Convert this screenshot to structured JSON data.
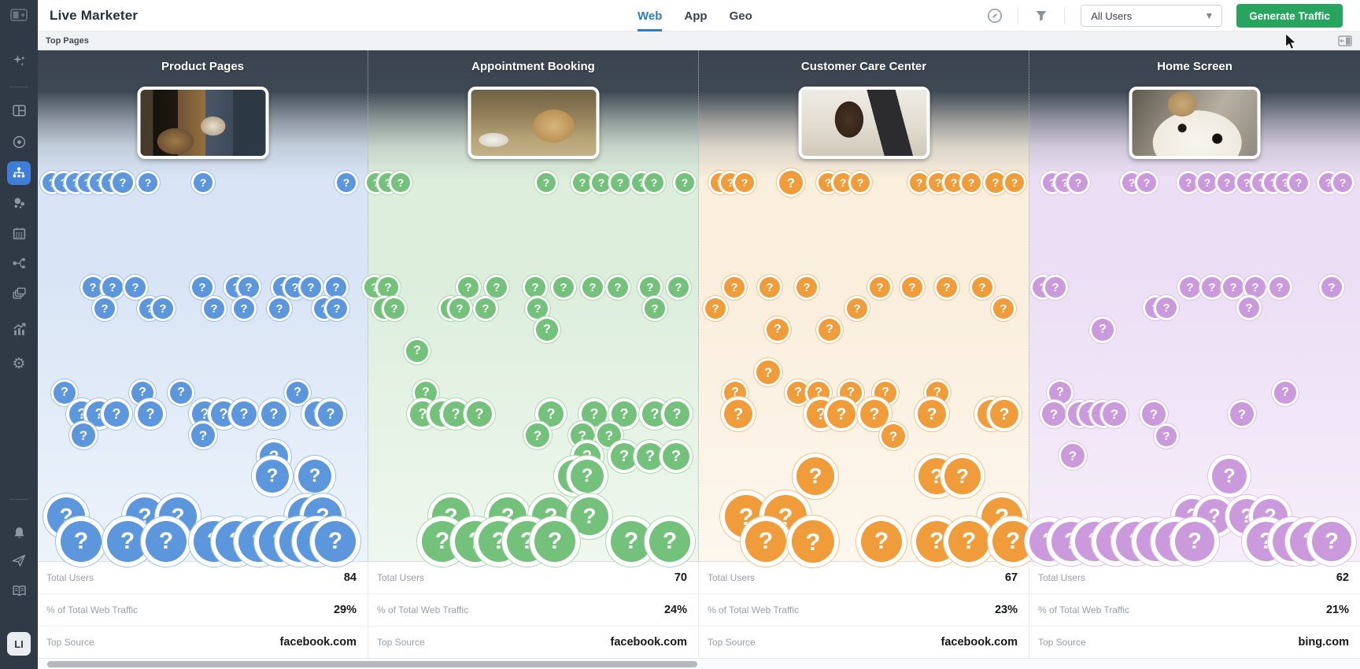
{
  "header": {
    "title": "Live Marketer",
    "tabs": [
      {
        "label": "Web",
        "active": true
      },
      {
        "label": "App",
        "active": false
      },
      {
        "label": "Geo",
        "active": false
      }
    ],
    "user_filter": {
      "value": "All Users"
    },
    "generate_button": "Generate Traffic",
    "icons": [
      "compass-icon",
      "filter-icon"
    ]
  },
  "toolbar": {
    "section_label": "Top Pages"
  },
  "sidebar": {
    "avatar_label": "LI",
    "items": [
      "panel-logo",
      "sparkles",
      "dashboard",
      "target",
      "sitemap-active",
      "bubbles",
      "calendar",
      "flow",
      "layers",
      "chart",
      "settings",
      "notifications",
      "send",
      "guide"
    ]
  },
  "stats_labels": {
    "total_users": "Total Users",
    "pct_traffic": "% of Total Web Traffic",
    "top_source": "Top Source"
  },
  "bubble_glyph": "?",
  "colors": {
    "accent_green": "#27a45d",
    "accent_blue": "#2d7dc4",
    "sidebar_bg": "#2f3a46",
    "column_header_dark": "#3a434e"
  },
  "columns": [
    {
      "title": "Product Pages",
      "total_users": "84",
      "pct_traffic": "29%",
      "top_source": "facebook.com",
      "bubble": "#5c96dd",
      "ring": "#9dc0ec",
      "tint": "#d9e5f6",
      "tint_light": "#edf3fa",
      "bubbles": [
        [
          18,
          232,
          12
        ],
        [
          33,
          232,
          12
        ],
        [
          48,
          232,
          12
        ],
        [
          63,
          232,
          12
        ],
        [
          78,
          232,
          12
        ],
        [
          93,
          232,
          12
        ],
        [
          108,
          232,
          13
        ],
        [
          140,
          232,
          12
        ],
        [
          210,
          232,
          12
        ],
        [
          392,
          232,
          12
        ],
        [
          70,
          365,
          13
        ],
        [
          95,
          365,
          13
        ],
        [
          124,
          365,
          13
        ],
        [
          209,
          365,
          13
        ],
        [
          252,
          365,
          13
        ],
        [
          268,
          365,
          13
        ],
        [
          312,
          365,
          13
        ],
        [
          327,
          365,
          13
        ],
        [
          347,
          365,
          13
        ],
        [
          379,
          365,
          13
        ],
        [
          85,
          392,
          13
        ],
        [
          142,
          392,
          13
        ],
        [
          159,
          392,
          13
        ],
        [
          224,
          392,
          13
        ],
        [
          262,
          392,
          13
        ],
        [
          307,
          392,
          13
        ],
        [
          364,
          392,
          13
        ],
        [
          380,
          392,
          13
        ],
        [
          34,
          499,
          14
        ],
        [
          133,
          499,
          14
        ],
        [
          182,
          499,
          14
        ],
        [
          330,
          499,
          14
        ],
        [
          56,
          526,
          16
        ],
        [
          78,
          526,
          16
        ],
        [
          100,
          526,
          16
        ],
        [
          143,
          526,
          16
        ],
        [
          212,
          526,
          16
        ],
        [
          236,
          526,
          16
        ],
        [
          262,
          526,
          16
        ],
        [
          300,
          526,
          16
        ],
        [
          355,
          526,
          16
        ],
        [
          372,
          526,
          16
        ],
        [
          58,
          553,
          15
        ],
        [
          210,
          553,
          15
        ],
        [
          300,
          580,
          18
        ],
        [
          298,
          605,
          21
        ],
        [
          352,
          605,
          21
        ],
        [
          36,
          656,
          24
        ],
        [
          136,
          656,
          24
        ],
        [
          178,
          656,
          24
        ],
        [
          342,
          656,
          24
        ],
        [
          362,
          656,
          24
        ],
        [
          55,
          688,
          26
        ],
        [
          114,
          688,
          26
        ],
        [
          163,
          688,
          26
        ],
        [
          224,
          688,
          26
        ],
        [
          252,
          688,
          26
        ],
        [
          281,
          688,
          26
        ],
        [
          307,
          688,
          26
        ],
        [
          333,
          688,
          26
        ],
        [
          355,
          688,
          26
        ],
        [
          378,
          688,
          26
        ]
      ]
    },
    {
      "title": "Appointment Booking",
      "total_users": "70",
      "pct_traffic": "24%",
      "top_source": "facebook.com",
      "bubble": "#74c17b",
      "ring": "#a8d8aa",
      "tint": "#ddeedd",
      "tint_light": "#eff7ee",
      "bubbles": [
        [
          10,
          232,
          12
        ],
        [
          25,
          232,
          12
        ],
        [
          41,
          232,
          12
        ],
        [
          226,
          232,
          12
        ],
        [
          272,
          232,
          12
        ],
        [
          296,
          232,
          12
        ],
        [
          320,
          232,
          12
        ],
        [
          347,
          232,
          12
        ],
        [
          363,
          232,
          12
        ],
        [
          402,
          232,
          12
        ],
        [
          8,
          365,
          13
        ],
        [
          25,
          365,
          13
        ],
        [
          127,
          365,
          13
        ],
        [
          163,
          365,
          13
        ],
        [
          212,
          365,
          13
        ],
        [
          248,
          365,
          13
        ],
        [
          285,
          365,
          13
        ],
        [
          317,
          365,
          13
        ],
        [
          358,
          365,
          13
        ],
        [
          394,
          365,
          13
        ],
        [
          20,
          392,
          13
        ],
        [
          33,
          392,
          13
        ],
        [
          105,
          392,
          13
        ],
        [
          116,
          392,
          13
        ],
        [
          149,
          392,
          13
        ],
        [
          215,
          392,
          13
        ],
        [
          364,
          392,
          13
        ],
        [
          227,
          419,
          14
        ],
        [
          62,
          446,
          14
        ],
        [
          73,
          499,
          14
        ],
        [
          69,
          526,
          16
        ],
        [
          94,
          526,
          16
        ],
        [
          111,
          526,
          16
        ],
        [
          141,
          526,
          16
        ],
        [
          232,
          526,
          16
        ],
        [
          287,
          526,
          16
        ],
        [
          325,
          526,
          16
        ],
        [
          364,
          526,
          16
        ],
        [
          392,
          526,
          16
        ],
        [
          215,
          553,
          15
        ],
        [
          272,
          553,
          15
        ],
        [
          306,
          553,
          15
        ],
        [
          278,
          580,
          17
        ],
        [
          325,
          580,
          17
        ],
        [
          358,
          580,
          17
        ],
        [
          391,
          580,
          17
        ],
        [
          262,
          605,
          21
        ],
        [
          278,
          605,
          21
        ],
        [
          105,
          656,
          24
        ],
        [
          177,
          656,
          24
        ],
        [
          232,
          656,
          24
        ],
        [
          281,
          656,
          24
        ],
        [
          94,
          688,
          26
        ],
        [
          136,
          688,
          26
        ],
        [
          166,
          688,
          26
        ],
        [
          202,
          688,
          26
        ],
        [
          237,
          688,
          26
        ],
        [
          334,
          688,
          26
        ],
        [
          383,
          688,
          26
        ]
      ]
    },
    {
      "title": "Customer Care Center",
      "total_users": "67",
      "pct_traffic": "23%",
      "top_source": "facebook.com",
      "bubble": "#f09c3a",
      "ring": "#f3c188",
      "tint": "#faeedd",
      "tint_light": "#fdf7ed",
      "bubbles": [
        [
          27,
          232,
          12
        ],
        [
          40,
          232,
          12
        ],
        [
          58,
          232,
          12
        ],
        [
          117,
          232,
          15
        ],
        [
          164,
          232,
          12
        ],
        [
          183,
          232,
          12
        ],
        [
          205,
          232,
          12
        ],
        [
          280,
          232,
          12
        ],
        [
          304,
          232,
          12
        ],
        [
          324,
          232,
          12
        ],
        [
          346,
          232,
          12
        ],
        [
          377,
          232,
          13
        ],
        [
          401,
          232,
          12
        ],
        [
          45,
          365,
          13
        ],
        [
          90,
          365,
          13
        ],
        [
          137,
          365,
          13
        ],
        [
          230,
          365,
          13
        ],
        [
          271,
          365,
          13
        ],
        [
          315,
          365,
          13
        ],
        [
          360,
          365,
          13
        ],
        [
          21,
          392,
          13
        ],
        [
          201,
          392,
          13
        ],
        [
          387,
          392,
          13
        ],
        [
          100,
          419,
          14
        ],
        [
          166,
          419,
          14
        ],
        [
          88,
          473,
          15
        ],
        [
          46,
          499,
          14
        ],
        [
          126,
          499,
          14
        ],
        [
          152,
          499,
          14
        ],
        [
          193,
          499,
          14
        ],
        [
          237,
          499,
          14
        ],
        [
          303,
          499,
          14
        ],
        [
          50,
          526,
          18
        ],
        [
          155,
          526,
          18
        ],
        [
          181,
          526,
          18
        ],
        [
          223,
          526,
          18
        ],
        [
          296,
          526,
          18
        ],
        [
          372,
          526,
          18
        ],
        [
          388,
          526,
          18
        ],
        [
          247,
          554,
          15
        ],
        [
          148,
          605,
          24
        ],
        [
          302,
          605,
          23
        ],
        [
          335,
          605,
          23
        ],
        [
          60,
          656,
          27
        ],
        [
          110,
          656,
          27
        ],
        [
          385,
          658,
          26
        ],
        [
          85,
          688,
          26
        ],
        [
          145,
          688,
          27
        ],
        [
          232,
          688,
          26
        ],
        [
          302,
          688,
          26
        ],
        [
          343,
          688,
          26
        ],
        [
          399,
          688,
          26
        ]
      ]
    },
    {
      "title": "Home Screen",
      "total_users": "62",
      "pct_traffic": "21%",
      "top_source": "bing.com",
      "bubble": "#cb9add",
      "ring": "#ddc0ec",
      "tint": "#ecdff5",
      "tint_light": "#f6eefa",
      "bubbles": [
        [
          29,
          232,
          12
        ],
        [
          45,
          232,
          12
        ],
        [
          62,
          232,
          12
        ],
        [
          130,
          232,
          12
        ],
        [
          149,
          232,
          12
        ],
        [
          202,
          232,
          12
        ],
        [
          226,
          232,
          12
        ],
        [
          251,
          232,
          12
        ],
        [
          276,
          232,
          12
        ],
        [
          295,
          232,
          12
        ],
        [
          310,
          232,
          12
        ],
        [
          325,
          232,
          12
        ],
        [
          342,
          232,
          12
        ],
        [
          380,
          232,
          12
        ],
        [
          398,
          232,
          12
        ],
        [
          17,
          365,
          13
        ],
        [
          33,
          365,
          13
        ],
        [
          204,
          365,
          13
        ],
        [
          232,
          365,
          13
        ],
        [
          259,
          365,
          13
        ],
        [
          287,
          365,
          13
        ],
        [
          318,
          365,
          13
        ],
        [
          384,
          365,
          13
        ],
        [
          160,
          391,
          13
        ],
        [
          174,
          391,
          13
        ],
        [
          279,
          391,
          13
        ],
        [
          93,
          419,
          14
        ],
        [
          39,
          499,
          14
        ],
        [
          325,
          499,
          14
        ],
        [
          31,
          526,
          15
        ],
        [
          64,
          526,
          15
        ],
        [
          78,
          526,
          15
        ],
        [
          94,
          526,
          15
        ],
        [
          108,
          526,
          15
        ],
        [
          158,
          526,
          15
        ],
        [
          270,
          526,
          15
        ],
        [
          174,
          554,
          13
        ],
        [
          55,
          579,
          15
        ],
        [
          254,
          605,
          22
        ],
        [
          207,
          656,
          22
        ],
        [
          235,
          656,
          22
        ],
        [
          276,
          656,
          22
        ],
        [
          306,
          656,
          22
        ],
        [
          25,
          688,
          25
        ],
        [
          53,
          688,
          25
        ],
        [
          83,
          688,
          25
        ],
        [
          110,
          688,
          25
        ],
        [
          135,
          688,
          25
        ],
        [
          161,
          688,
          25
        ],
        [
          185,
          688,
          25
        ],
        [
          210,
          688,
          25
        ],
        [
          301,
          688,
          25
        ],
        [
          334,
          688,
          25
        ],
        [
          356,
          688,
          25
        ],
        [
          384,
          688,
          25
        ]
      ]
    }
  ]
}
